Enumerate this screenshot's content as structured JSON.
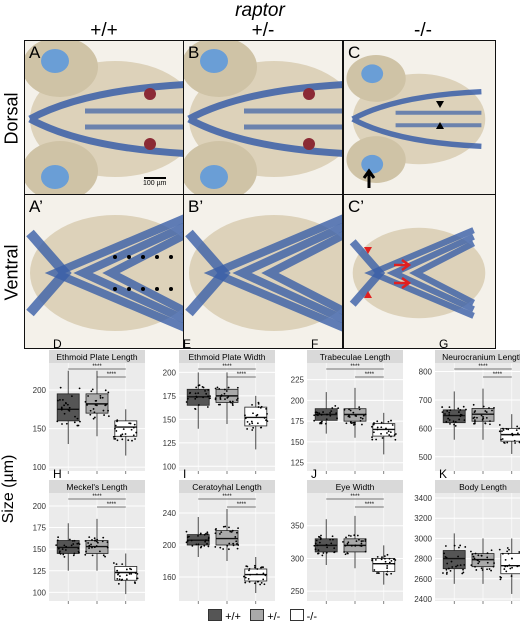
{
  "figure": {
    "gene_label": "raptor",
    "genotypes": [
      "+/+",
      "+/-",
      "-/-"
    ],
    "row_labels": [
      "Dorsal",
      "Ventral"
    ],
    "panel_labels": [
      "A",
      "B",
      "C",
      "A’",
      "B’",
      "C’"
    ],
    "scale_bar_label": "100 µm",
    "y_axis_label": "Size (µm)",
    "significance": "****",
    "legend": [
      {
        "label": "+/+",
        "color": "#555555"
      },
      {
        "label": "+/-",
        "color": "#a9a9a9"
      },
      {
        "label": "-/-",
        "color": "#ffffff"
      }
    ],
    "colors": {
      "cartilage_blue": "#3a5fa8",
      "background_tissue": "#d8ccb2",
      "panel_background": "#ebebeb",
      "strip_background": "#d9d9d9",
      "arrow_red": "#e02020"
    }
  },
  "chart_data": [
    {
      "type": "box",
      "panel": "D",
      "title": "Ethmoid Plate Length",
      "ylim": [
        95,
        235
      ],
      "yticks": [
        100,
        150,
        200
      ],
      "series": [
        {
          "name": "+/+",
          "q1": 160,
          "median": 175,
          "q3": 195,
          "min": 130,
          "max": 225
        },
        {
          "name": "+/-",
          "q1": 170,
          "median": 182,
          "q3": 195,
          "min": 140,
          "max": 225
        },
        {
          "name": "-/-",
          "q1": 140,
          "median": 152,
          "q3": 160,
          "min": 115,
          "max": 175
        }
      ]
    },
    {
      "type": "box",
      "panel": "E",
      "title": "Ethmoid Plate Width",
      "ylim": [
        95,
        210
      ],
      "yticks": [
        100,
        125,
        150,
        175,
        200
      ],
      "series": [
        {
          "name": "+/+",
          "q1": 165,
          "median": 174,
          "q3": 182,
          "min": 140,
          "max": 200
        },
        {
          "name": "+/-",
          "q1": 168,
          "median": 175,
          "q3": 182,
          "min": 145,
          "max": 200
        },
        {
          "name": "-/-",
          "q1": 143,
          "median": 152,
          "q3": 163,
          "min": 118,
          "max": 175
        }
      ]
    },
    {
      "type": "box",
      "panel": "F",
      "title": "Trabeculae Length",
      "ylim": [
        115,
        245
      ],
      "yticks": [
        125,
        150,
        175,
        200,
        225
      ],
      "series": [
        {
          "name": "+/+",
          "q1": 176,
          "median": 183,
          "q3": 190,
          "min": 160,
          "max": 210
        },
        {
          "name": "+/-",
          "q1": 175,
          "median": 183,
          "q3": 190,
          "min": 155,
          "max": 215
        },
        {
          "name": "-/-",
          "q1": 157,
          "median": 165,
          "q3": 172,
          "min": 135,
          "max": 185
        }
      ]
    },
    {
      "type": "box",
      "panel": "G",
      "title": "Neurocranium Length",
      "ylim": [
        450,
        830
      ],
      "yticks": [
        500,
        600,
        700,
        800
      ],
      "series": [
        {
          "name": "+/+",
          "q1": 620,
          "median": 645,
          "q3": 665,
          "min": 560,
          "max": 730
        },
        {
          "name": "+/-",
          "q1": 625,
          "median": 650,
          "q3": 670,
          "min": 560,
          "max": 740
        },
        {
          "name": "-/-",
          "q1": 555,
          "median": 578,
          "q3": 600,
          "min": 510,
          "max": 650
        }
      ]
    },
    {
      "type": "box",
      "panel": "H",
      "title": "Meckel's Length",
      "ylim": [
        90,
        215
      ],
      "yticks": [
        100,
        125,
        150,
        175,
        200
      ],
      "series": [
        {
          "name": "+/+",
          "q1": 145,
          "median": 152,
          "q3": 160,
          "min": 125,
          "max": 180
        },
        {
          "name": "+/-",
          "q1": 145,
          "median": 153,
          "q3": 160,
          "min": 125,
          "max": 185
        },
        {
          "name": "-/-",
          "q1": 114,
          "median": 123,
          "q3": 130,
          "min": 98,
          "max": 145
        }
      ]
    },
    {
      "type": "box",
      "panel": "I",
      "title": "Ceratoyhal Length",
      "ylim": [
        130,
        265
      ],
      "yticks": [
        160,
        200,
        240
      ],
      "series": [
        {
          "name": "+/+",
          "q1": 200,
          "median": 206,
          "q3": 213,
          "min": 185,
          "max": 235
        },
        {
          "name": "+/-",
          "q1": 200,
          "median": 208,
          "q3": 218,
          "min": 180,
          "max": 245
        },
        {
          "name": "-/-",
          "q1": 155,
          "median": 163,
          "q3": 170,
          "min": 140,
          "max": 185
        }
      ]
    },
    {
      "type": "box",
      "panel": "J",
      "title": "Eye Width",
      "ylim": [
        235,
        400
      ],
      "yticks": [
        250,
        300,
        350
      ],
      "series": [
        {
          "name": "+/+",
          "q1": 310,
          "median": 320,
          "q3": 330,
          "min": 290,
          "max": 360
        },
        {
          "name": "+/-",
          "q1": 310,
          "median": 320,
          "q3": 330,
          "min": 285,
          "max": 365
        },
        {
          "name": "-/-",
          "q1": 280,
          "median": 292,
          "q3": 300,
          "min": 260,
          "max": 320
        }
      ]
    },
    {
      "type": "box",
      "panel": "K",
      "title": "Body Length",
      "ylim": [
        2380,
        3450
      ],
      "yticks": [
        2400,
        2600,
        2800,
        3000,
        3200,
        3400
      ],
      "series": [
        {
          "name": "+/+",
          "q1": 2700,
          "median": 2800,
          "q3": 2880,
          "min": 2550,
          "max": 3050
        },
        {
          "name": "+/-",
          "q1": 2720,
          "median": 2790,
          "q3": 2850,
          "min": 2550,
          "max": 3000
        },
        {
          "name": "-/-",
          "q1": 2650,
          "median": 2730,
          "q3": 2850,
          "min": 2450,
          "max": 3000
        }
      ]
    }
  ]
}
